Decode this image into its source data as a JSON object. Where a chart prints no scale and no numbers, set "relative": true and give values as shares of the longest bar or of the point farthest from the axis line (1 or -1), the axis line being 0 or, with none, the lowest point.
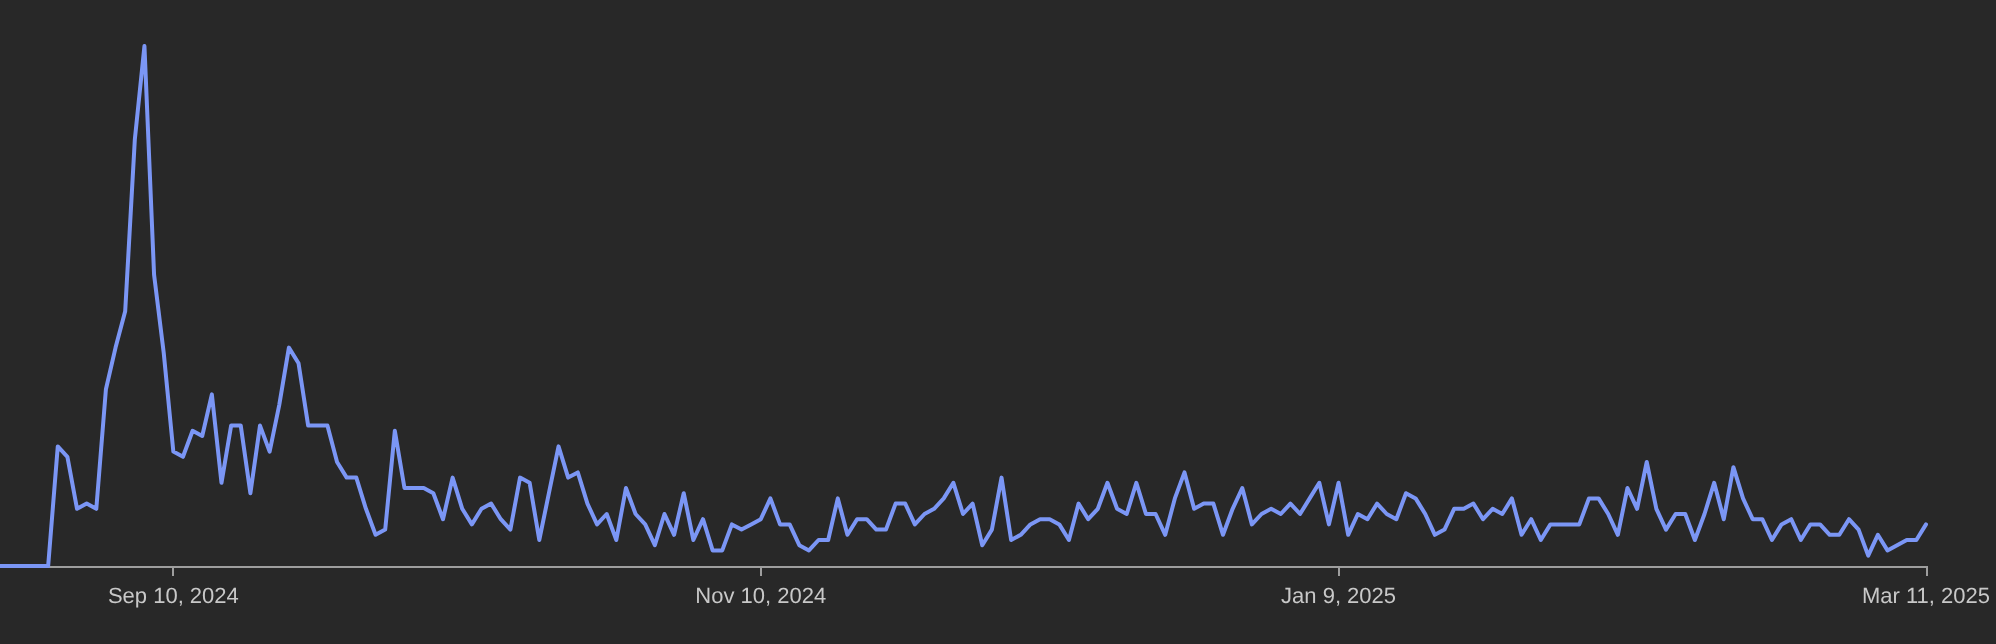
{
  "chart_data": {
    "type": "line",
    "relative": true,
    "color": "#7b96f5",
    "marker": "none",
    "line_style": "solid",
    "xlim": [
      "2024-08-23",
      "2025-03-11"
    ],
    "xticks": [
      {
        "value": "2024-09-10",
        "label": "Sep 10, 2024"
      },
      {
        "value": "2024-11-10",
        "label": "Nov 10, 2024"
      },
      {
        "value": "2025-01-09",
        "label": "Jan 9, 2025"
      },
      {
        "value": "2025-03-11",
        "label": "Mar 11, 2025"
      }
    ],
    "x": [
      "2024-08-23",
      "2024-08-28",
      "2024-08-29",
      "2024-08-30",
      "2024-08-31",
      "2024-09-01",
      "2024-09-02",
      "2024-09-03",
      "2024-09-04",
      "2024-09-05",
      "2024-09-06",
      "2024-09-07",
      "2024-09-08",
      "2024-09-09",
      "2024-09-10",
      "2024-09-11",
      "2024-09-12",
      "2024-09-13",
      "2024-09-14",
      "2024-09-15",
      "2024-09-16",
      "2024-09-17",
      "2024-09-18",
      "2024-09-19",
      "2024-09-20",
      "2024-09-21",
      "2024-09-22",
      "2024-09-23",
      "2024-09-24",
      "2024-09-26",
      "2024-09-27",
      "2024-09-28",
      "2024-09-29",
      "2024-09-30",
      "2024-10-01",
      "2024-10-02",
      "2024-10-03",
      "2024-10-04",
      "2024-10-05",
      "2024-10-06",
      "2024-10-07",
      "2024-10-08",
      "2024-10-09",
      "2024-10-10",
      "2024-10-11",
      "2024-10-12",
      "2024-10-13",
      "2024-10-14",
      "2024-10-15",
      "2024-10-16",
      "2024-10-17",
      "2024-10-18",
      "2024-10-19",
      "2024-10-20",
      "2024-10-21",
      "2024-10-22",
      "2024-10-23",
      "2024-10-24",
      "2024-10-25",
      "2024-10-26",
      "2024-10-27",
      "2024-10-28",
      "2024-10-29",
      "2024-10-30",
      "2024-10-31",
      "2024-11-01",
      "2024-11-02",
      "2024-11-03",
      "2024-11-04",
      "2024-11-05",
      "2024-11-06",
      "2024-11-07",
      "2024-11-08",
      "2024-11-09",
      "2024-11-10",
      "2024-11-11",
      "2024-11-12",
      "2024-11-13",
      "2024-11-14",
      "2024-11-15",
      "2024-11-16",
      "2024-11-17",
      "2024-11-18",
      "2024-11-19",
      "2024-11-20",
      "2024-11-21",
      "2024-11-22",
      "2024-11-23",
      "2024-11-24",
      "2024-11-25",
      "2024-11-26",
      "2024-11-27",
      "2024-11-28",
      "2024-11-29",
      "2024-11-30",
      "2024-12-01",
      "2024-12-02",
      "2024-12-03",
      "2024-12-04",
      "2024-12-05",
      "2024-12-06",
      "2024-12-07",
      "2024-12-08",
      "2024-12-09",
      "2024-12-10",
      "2024-12-11",
      "2024-12-12",
      "2024-12-13",
      "2024-12-14",
      "2024-12-15",
      "2024-12-16",
      "2024-12-17",
      "2024-12-18",
      "2024-12-19",
      "2024-12-20",
      "2024-12-21",
      "2024-12-22",
      "2024-12-23",
      "2024-12-24",
      "2024-12-25",
      "2024-12-26",
      "2024-12-27",
      "2024-12-28",
      "2024-12-29",
      "2024-12-30",
      "2024-12-31",
      "2025-01-01",
      "2025-01-02",
      "2025-01-03",
      "2025-01-04",
      "2025-01-05",
      "2025-01-06",
      "2025-01-07",
      "2025-01-08",
      "2025-01-09",
      "2025-01-10",
      "2025-01-11",
      "2025-01-12",
      "2025-01-13",
      "2025-01-14",
      "2025-01-15",
      "2025-01-16",
      "2025-01-17",
      "2025-01-18",
      "2025-01-19",
      "2025-01-20",
      "2025-01-21",
      "2025-01-22",
      "2025-01-23",
      "2025-01-24",
      "2025-01-25",
      "2025-01-26",
      "2025-01-27",
      "2025-01-28",
      "2025-01-29",
      "2025-01-30",
      "2025-01-31",
      "2025-02-02",
      "2025-02-03",
      "2025-02-04",
      "2025-02-05",
      "2025-02-06",
      "2025-02-07",
      "2025-02-08",
      "2025-02-09",
      "2025-02-10",
      "2025-02-11",
      "2025-02-12",
      "2025-02-13",
      "2025-02-14",
      "2025-02-15",
      "2025-02-16",
      "2025-02-17",
      "2025-02-18",
      "2025-02-19",
      "2025-02-20",
      "2025-02-21",
      "2025-02-22",
      "2025-02-23",
      "2025-02-24",
      "2025-02-25",
      "2025-02-26",
      "2025-02-27",
      "2025-02-28",
      "2025-03-01",
      "2025-03-02",
      "2025-03-03",
      "2025-03-04",
      "2025-03-05",
      "2025-03-06",
      "2025-03-07",
      "2025-03-08",
      "2025-03-09",
      "2025-03-10",
      "2025-03-11"
    ],
    "values": [
      0,
      0,
      0.23,
      0.21,
      0.11,
      0.12,
      0.11,
      0.34,
      0.42,
      0.49,
      0.82,
      1.0,
      0.56,
      0.41,
      0.22,
      0.21,
      0.26,
      0.25,
      0.33,
      0.16,
      0.27,
      0.27,
      0.14,
      0.27,
      0.22,
      0.31,
      0.42,
      0.39,
      0.27,
      0.27,
      0.2,
      0.17,
      0.17,
      0.11,
      0.06,
      0.07,
      0.26,
      0.15,
      0.15,
      0.15,
      0.14,
      0.09,
      0.17,
      0.11,
      0.08,
      0.11,
      0.12,
      0.09,
      0.07,
      0.17,
      0.16,
      0.05,
      0.14,
      0.23,
      0.17,
      0.18,
      0.12,
      0.08,
      0.1,
      0.05,
      0.15,
      0.1,
      0.08,
      0.04,
      0.1,
      0.06,
      0.14,
      0.05,
      0.09,
      0.03,
      0.03,
      0.08,
      0.07,
      0.08,
      0.09,
      0.13,
      0.08,
      0.08,
      0.04,
      0.03,
      0.05,
      0.05,
      0.13,
      0.06,
      0.09,
      0.09,
      0.07,
      0.07,
      0.12,
      0.12,
      0.08,
      0.1,
      0.11,
      0.13,
      0.16,
      0.1,
      0.12,
      0.04,
      0.07,
      0.17,
      0.05,
      0.06,
      0.08,
      0.09,
      0.09,
      0.08,
      0.05,
      0.12,
      0.09,
      0.11,
      0.16,
      0.11,
      0.1,
      0.16,
      0.1,
      0.1,
      0.06,
      0.13,
      0.18,
      0.11,
      0.12,
      0.12,
      0.06,
      0.11,
      0.15,
      0.08,
      0.1,
      0.11,
      0.1,
      0.12,
      0.1,
      0.13,
      0.16,
      0.08,
      0.16,
      0.06,
      0.1,
      0.09,
      0.12,
      0.1,
      0.09,
      0.14,
      0.13,
      0.1,
      0.06,
      0.07,
      0.11,
      0.11,
      0.12,
      0.09,
      0.11,
      0.1,
      0.13,
      0.06,
      0.09,
      0.05,
      0.08,
      0.08,
      0.08,
      0.13,
      0.13,
      0.1,
      0.06,
      0.15,
      0.11,
      0.2,
      0.11,
      0.07,
      0.1,
      0.1,
      0.05,
      0.1,
      0.16,
      0.09,
      0.19,
      0.13,
      0.09,
      0.09,
      0.05,
      0.08,
      0.09,
      0.05,
      0.08,
      0.08,
      0.06,
      0.06,
      0.09,
      0.07,
      0.02,
      0.06,
      0.03,
      0.04,
      0.05,
      0.05,
      0.08
    ]
  }
}
